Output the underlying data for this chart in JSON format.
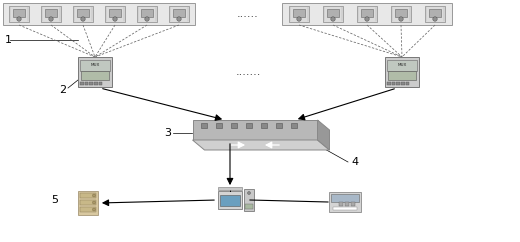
{
  "bg_color": "#ffffff",
  "label_1": "1",
  "label_2": "2",
  "label_3": "3",
  "label_4": "4",
  "label_5": "5",
  "fig_width": 5.2,
  "fig_height": 2.42,
  "dpi": 100,
  "dashed_color": "#666666",
  "dots_color": "#333333",
  "cell_face": "#e0e0e0",
  "cell_edge": "#888888",
  "cell_inner": "#aaaaaa",
  "hub_face": "#cccccc",
  "hub_edge": "#777777",
  "switch_top": "#d0d0d0",
  "switch_front": "#b8b8b8",
  "switch_right": "#989898"
}
